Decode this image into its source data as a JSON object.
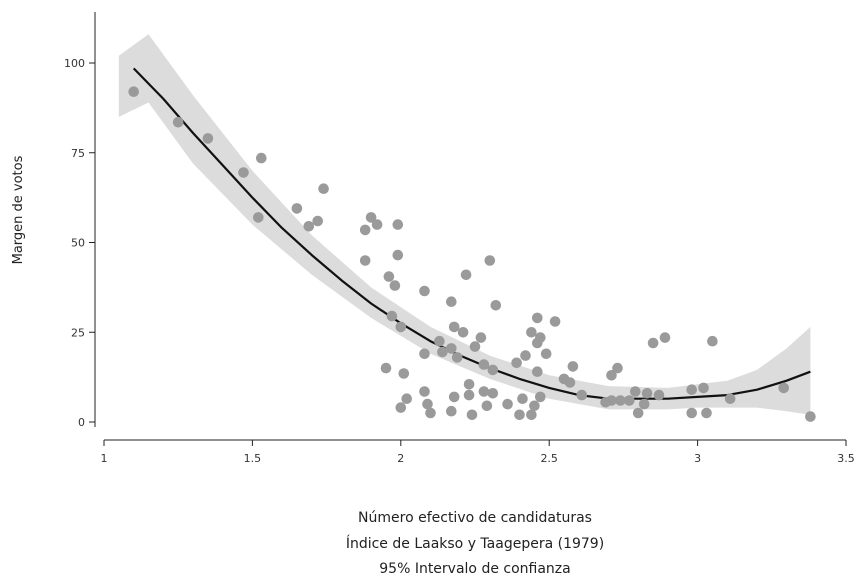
{
  "chart_data": {
    "type": "scatter",
    "ylabel": "Margen de votos",
    "xlabel_lines": [
      "Número efectivo de candidaturas",
      "Índice de Laakso y Taagepera (1979)",
      "95% Intervalo de confianza"
    ],
    "xlim": [
      1,
      3.5
    ],
    "ylim": [
      0,
      113
    ],
    "x_ticks": [
      1,
      1.5,
      2,
      2.5,
      3,
      3.5
    ],
    "x_tick_labels": [
      "1",
      "1.5",
      "2",
      "2.5",
      "3",
      "3.5"
    ],
    "y_ticks": [
      0,
      25,
      50,
      75,
      100
    ],
    "y_tick_labels": [
      "0",
      "25",
      "50",
      "75",
      "100"
    ],
    "grid": false,
    "colors": {
      "points": "#9a9a9a",
      "fit_line": "#111111",
      "ci_band": "#dcdcdc"
    },
    "points": [
      [
        1.1,
        92
      ],
      [
        1.25,
        83.5
      ],
      [
        1.35,
        79
      ],
      [
        1.47,
        69.5
      ],
      [
        1.52,
        57
      ],
      [
        1.53,
        73.5
      ],
      [
        1.65,
        59.5
      ],
      [
        1.69,
        54.5
      ],
      [
        1.72,
        56
      ],
      [
        1.74,
        65
      ],
      [
        1.88,
        45
      ],
      [
        1.88,
        53.5
      ],
      [
        1.9,
        57
      ],
      [
        1.92,
        55
      ],
      [
        1.95,
        15
      ],
      [
        1.96,
        40.5
      ],
      [
        1.97,
        29.5
      ],
      [
        1.98,
        38
      ],
      [
        1.99,
        55
      ],
      [
        1.99,
        46.5
      ],
      [
        2.0,
        26.5
      ],
      [
        2.0,
        4
      ],
      [
        2.01,
        13.5
      ],
      [
        2.02,
        6.5
      ],
      [
        2.08,
        36.5
      ],
      [
        2.08,
        19
      ],
      [
        2.08,
        8.5
      ],
      [
        2.09,
        5
      ],
      [
        2.1,
        2.5
      ],
      [
        2.13,
        22.5
      ],
      [
        2.14,
        19.5
      ],
      [
        2.17,
        33.5
      ],
      [
        2.17,
        20.5
      ],
      [
        2.17,
        3
      ],
      [
        2.18,
        26.5
      ],
      [
        2.18,
        7
      ],
      [
        2.19,
        18
      ],
      [
        2.21,
        25
      ],
      [
        2.22,
        41
      ],
      [
        2.23,
        10.5
      ],
      [
        2.23,
        7.5
      ],
      [
        2.24,
        2
      ],
      [
        2.25,
        21
      ],
      [
        2.27,
        23.5
      ],
      [
        2.28,
        16
      ],
      [
        2.28,
        8.5
      ],
      [
        2.29,
        4.5
      ],
      [
        2.3,
        45
      ],
      [
        2.31,
        8
      ],
      [
        2.31,
        14.5
      ],
      [
        2.32,
        32.5
      ],
      [
        2.36,
        5
      ],
      [
        2.39,
        16.5
      ],
      [
        2.4,
        2
      ],
      [
        2.41,
        6.5
      ],
      [
        2.42,
        18.5
      ],
      [
        2.44,
        25
      ],
      [
        2.44,
        2
      ],
      [
        2.45,
        4.5
      ],
      [
        2.46,
        14
      ],
      [
        2.46,
        22
      ],
      [
        2.46,
        29
      ],
      [
        2.47,
        23.5
      ],
      [
        2.47,
        7
      ],
      [
        2.49,
        19
      ],
      [
        2.52,
        28
      ],
      [
        2.55,
        12
      ],
      [
        2.57,
        11
      ],
      [
        2.58,
        15.5
      ],
      [
        2.61,
        7.5
      ],
      [
        2.69,
        5.5
      ],
      [
        2.71,
        13
      ],
      [
        2.71,
        6
      ],
      [
        2.73,
        15
      ],
      [
        2.74,
        6
      ],
      [
        2.77,
        6
      ],
      [
        2.79,
        8.5
      ],
      [
        2.8,
        2.5
      ],
      [
        2.82,
        5
      ],
      [
        2.83,
        8
      ],
      [
        2.85,
        22
      ],
      [
        2.87,
        7.5
      ],
      [
        2.89,
        23.5
      ],
      [
        2.98,
        9
      ],
      [
        2.98,
        2.5
      ],
      [
        3.02,
        9.5
      ],
      [
        3.03,
        2.5
      ],
      [
        3.05,
        22.5
      ],
      [
        3.11,
        6.5
      ],
      [
        3.29,
        9.5
      ],
      [
        3.38,
        1.5
      ]
    ],
    "fit_line": [
      [
        1.1,
        98.5
      ],
      [
        1.2,
        90
      ],
      [
        1.3,
        80.5
      ],
      [
        1.4,
        71.5
      ],
      [
        1.5,
        62.5
      ],
      [
        1.6,
        54
      ],
      [
        1.7,
        46.5
      ],
      [
        1.8,
        39.5
      ],
      [
        1.9,
        33
      ],
      [
        2.0,
        27.5
      ],
      [
        2.1,
        22.5
      ],
      [
        2.2,
        18.5
      ],
      [
        2.3,
        15
      ],
      [
        2.4,
        12
      ],
      [
        2.5,
        9.5
      ],
      [
        2.6,
        7.5
      ],
      [
        2.7,
        6.5
      ],
      [
        2.8,
        6.5
      ],
      [
        2.9,
        6.5
      ],
      [
        3.0,
        7
      ],
      [
        3.1,
        7.5
      ],
      [
        3.2,
        9
      ],
      [
        3.3,
        11.5
      ],
      [
        3.38,
        14
      ]
    ],
    "ci_upper": [
      [
        1.05,
        102
      ],
      [
        1.15,
        108
      ],
      [
        1.3,
        91
      ],
      [
        1.5,
        70
      ],
      [
        1.7,
        52
      ],
      [
        1.9,
        37.5
      ],
      [
        2.1,
        26.5
      ],
      [
        2.3,
        18.5
      ],
      [
        2.5,
        13
      ],
      [
        2.7,
        10
      ],
      [
        2.9,
        9.5
      ],
      [
        3.0,
        10.5
      ],
      [
        3.1,
        11.5
      ],
      [
        3.2,
        14.5
      ],
      [
        3.3,
        20.5
      ],
      [
        3.38,
        26.5
      ]
    ],
    "ci_lower": [
      [
        1.05,
        85
      ],
      [
        1.15,
        89
      ],
      [
        1.3,
        72
      ],
      [
        1.5,
        55
      ],
      [
        1.7,
        41
      ],
      [
        1.9,
        29
      ],
      [
        2.1,
        19
      ],
      [
        2.3,
        12
      ],
      [
        2.5,
        6.5
      ],
      [
        2.7,
        3.5
      ],
      [
        2.9,
        3.5
      ],
      [
        3.0,
        4
      ],
      [
        3.1,
        4
      ],
      [
        3.2,
        4
      ],
      [
        3.3,
        3
      ],
      [
        3.38,
        2
      ]
    ]
  }
}
